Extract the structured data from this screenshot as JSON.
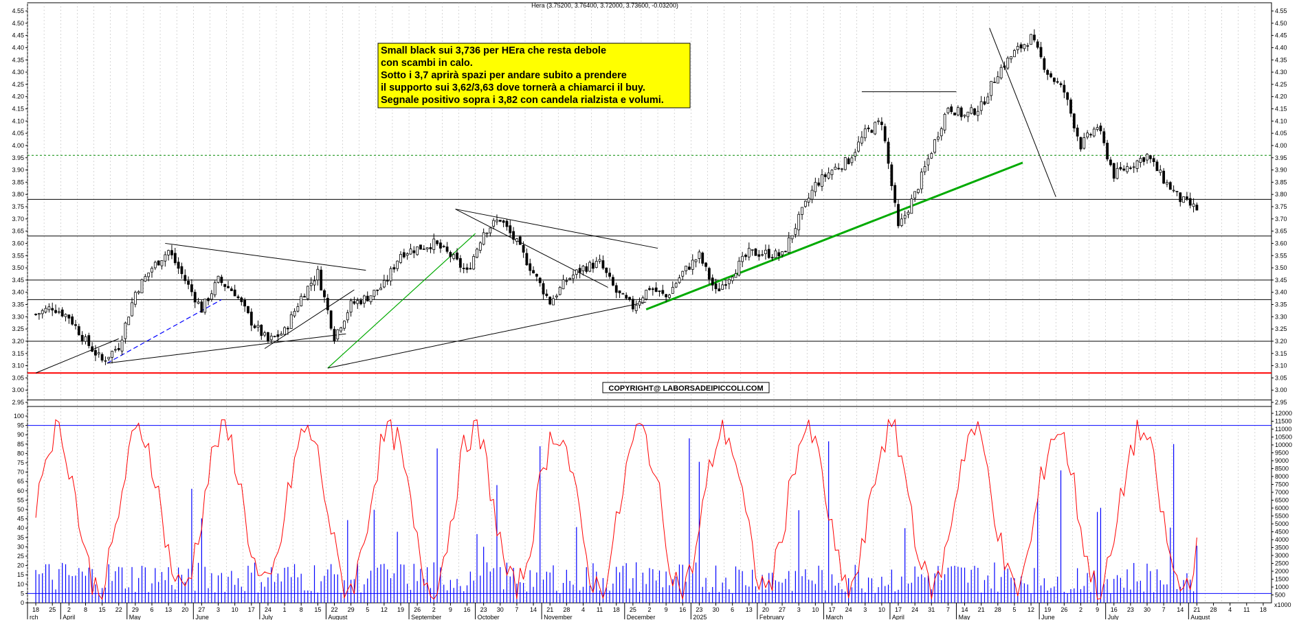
{
  "header": {
    "title": "Hera (3.75200, 3.76400, 3.72000, 3.73600, -0.03200)"
  },
  "annotation": {
    "lines": [
      "Small black sui 3,736 per HEra che resta debole",
      "con scambi in calo.",
      "Sotto i 3,7 aprirà spazi per andare subito a prendere",
      "il supporto sui 3,62/3,63 dove tornerà a chiamarci il buy.",
      "Segnale positivo sopra i 3,82 con candela rialzista e volumi."
    ],
    "bg_color": "#ffff00"
  },
  "copyright": "COPYRIGHT@ LABORSADEIPICCOLI.COM",
  "colors": {
    "candle": "#000000",
    "oscillator": "#ff0000",
    "volume": "#0000ff",
    "trend_green": "#00aa00",
    "support_red": "#ff0000",
    "dotted_level": "#008800"
  },
  "chart_data": {
    "type": "candlestick",
    "price_axis": {
      "ylim": [
        2.95,
        4.55
      ],
      "ticks": [
        "4.55",
        "4.50",
        "4.45",
        "4.40",
        "4.35",
        "4.30",
        "4.25",
        "4.20",
        "4.15",
        "4.10",
        "4.05",
        "4.00",
        "3.95",
        "3.90",
        "3.85",
        "3.80",
        "3.75",
        "3.70",
        "3.65",
        "3.60",
        "3.55",
        "3.50",
        "3.45",
        "3.40",
        "3.35",
        "3.30",
        "3.25",
        "3.20",
        "3.15",
        "3.10",
        "3.05",
        "3.00",
        "2.95"
      ]
    },
    "oscillator_axis": {
      "ylim": [
        0,
        100
      ],
      "ticks": [
        "100",
        "95",
        "90",
        "85",
        "80",
        "75",
        "70",
        "65",
        "60",
        "55",
        "50",
        "45",
        "40",
        "35",
        "30",
        "25",
        "20",
        "15",
        "10",
        "5",
        "0"
      ]
    },
    "volume_axis": {
      "ticks": [
        "12000",
        "11500",
        "11000",
        "10500",
        "10000",
        "9500",
        "9000",
        "8500",
        "8000",
        "7500",
        "7000",
        "6500",
        "6000",
        "5500",
        "5000",
        "4500",
        "4000",
        "3500",
        "3000",
        "2500",
        "2000",
        "1500",
        "1000",
        "500"
      ],
      "unit": "x1000"
    },
    "x_axis": {
      "days": [
        "18",
        "25",
        "2",
        "8",
        "15",
        "22",
        "29",
        "6",
        "13",
        "20",
        "27",
        "3",
        "10",
        "17",
        "24",
        "1",
        "8",
        "15",
        "22",
        "29",
        "5",
        "12",
        "19",
        "26",
        "2",
        "9",
        "16",
        "23",
        "30",
        "7",
        "14",
        "21",
        "28",
        "4",
        "11",
        "18",
        "25",
        "2",
        "9",
        "16",
        "23",
        "30",
        "6",
        "13",
        "20",
        "27",
        "3",
        "10",
        "17",
        "24",
        "3",
        "10",
        "17",
        "24",
        "31",
        "7",
        "14",
        "21",
        "28",
        "5",
        "12",
        "19",
        "26",
        "2",
        "9",
        "16",
        "23",
        "30",
        "7",
        "14",
        "21",
        "28",
        "4",
        "11",
        "18"
      ],
      "months": [
        {
          "label": "rch",
          "day_index": 0
        },
        {
          "label": "April",
          "day_index": 2
        },
        {
          "label": "May",
          "day_index": 6
        },
        {
          "label": "June",
          "day_index": 10
        },
        {
          "label": "July",
          "day_index": 14
        },
        {
          "label": "August",
          "day_index": 18
        },
        {
          "label": "September",
          "day_index": 23
        },
        {
          "label": "October",
          "day_index": 27
        },
        {
          "label": "November",
          "day_index": 31
        },
        {
          "label": "December",
          "day_index": 36
        },
        {
          "label": "2025",
          "day_index": 40
        },
        {
          "label": "February",
          "day_index": 44
        },
        {
          "label": "March",
          "day_index": 48
        },
        {
          "label": "April",
          "day_index": 52
        },
        {
          "label": "May",
          "day_index": 56
        },
        {
          "label": "June",
          "day_index": 61
        },
        {
          "label": "July",
          "day_index": 65
        },
        {
          "label": "August",
          "day_index": 70
        }
      ]
    },
    "price_path": [
      [
        0,
        3.31
      ],
      [
        1,
        3.34
      ],
      [
        2,
        3.3
      ],
      [
        3,
        3.2
      ],
      [
        4,
        3.12
      ],
      [
        5,
        3.18
      ],
      [
        6,
        3.4
      ],
      [
        7,
        3.5
      ],
      [
        8,
        3.57
      ],
      [
        9,
        3.45
      ],
      [
        10,
        3.33
      ],
      [
        11,
        3.45
      ],
      [
        12,
        3.4
      ],
      [
        13,
        3.28
      ],
      [
        14,
        3.2
      ],
      [
        15,
        3.24
      ],
      [
        16,
        3.38
      ],
      [
        17,
        3.48
      ],
      [
        18,
        3.22
      ],
      [
        19,
        3.35
      ],
      [
        20,
        3.38
      ],
      [
        21,
        3.43
      ],
      [
        22,
        3.56
      ],
      [
        23,
        3.58
      ],
      [
        24,
        3.6
      ],
      [
        25,
        3.55
      ],
      [
        26,
        3.48
      ],
      [
        27,
        3.65
      ],
      [
        28,
        3.7
      ],
      [
        29,
        3.6
      ],
      [
        30,
        3.48
      ],
      [
        31,
        3.36
      ],
      [
        32,
        3.45
      ],
      [
        33,
        3.5
      ],
      [
        34,
        3.52
      ],
      [
        35,
        3.4
      ],
      [
        36,
        3.34
      ],
      [
        37,
        3.42
      ],
      [
        38,
        3.38
      ],
      [
        39,
        3.48
      ],
      [
        40,
        3.55
      ],
      [
        41,
        3.4
      ],
      [
        42,
        3.48
      ],
      [
        43,
        3.56
      ],
      [
        44,
        3.56
      ],
      [
        45,
        3.55
      ],
      [
        46,
        3.7
      ],
      [
        47,
        3.84
      ],
      [
        48,
        3.9
      ],
      [
        49,
        3.94
      ],
      [
        50,
        4.05
      ],
      [
        51,
        4.1
      ],
      [
        52,
        3.66
      ],
      [
        53,
        3.8
      ],
      [
        54,
        3.98
      ],
      [
        55,
        4.16
      ],
      [
        56,
        4.12
      ],
      [
        57,
        4.16
      ],
      [
        58,
        4.3
      ],
      [
        59,
        4.38
      ],
      [
        60,
        4.44
      ],
      [
        61,
        4.3
      ],
      [
        62,
        4.22
      ],
      [
        63,
        4.0
      ],
      [
        64,
        4.08
      ],
      [
        65,
        3.88
      ],
      [
        66,
        3.92
      ],
      [
        67,
        3.96
      ],
      [
        68,
        3.86
      ],
      [
        69,
        3.78
      ],
      [
        70,
        3.74
      ]
    ],
    "levels": [
      3.96,
      3.78,
      3.63,
      3.45,
      3.37,
      3.2,
      3.07,
      2.96
    ],
    "support_level_red": 3.07,
    "dotted_level": 3.96
  }
}
